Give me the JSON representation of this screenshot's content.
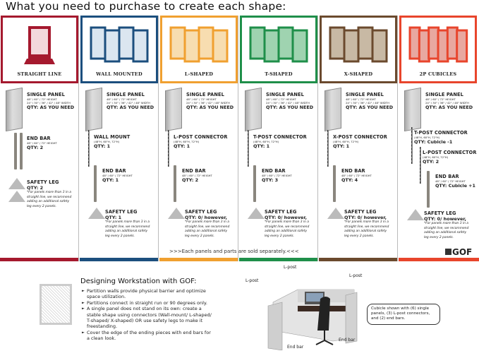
{
  "title": "What you need to purchase to create each shape:",
  "columns": [
    {
      "label": "STRAIGHT LINE",
      "color": "#a5192e",
      "fill": "#f3d8dc",
      "items": [
        {
          "kind": "panel",
          "title": "SINGLE PANEL",
          "subs": [
            "48\" / 60\" / 72\" HEIGHT",
            "24\" / 30\" / 36\" / 42\" / 48\" WIDTH"
          ],
          "qty": "QTY: AS YOU NEED"
        },
        {
          "kind": "endbar2",
          "title": "END BAR",
          "subs": [
            "48\" / 60\" / 72\" HEIGHT"
          ],
          "qty": "QTY: 2"
        },
        {
          "kind": "leg2",
          "title": "SAFETY LEG",
          "subs": [],
          "qty": "QTY: 2",
          "note": "*For panels more than 3 in a straight line, we recommend adding an additional safety leg every 2 panels."
        }
      ]
    },
    {
      "label": "WALL MOUNTED",
      "color": "#1c4f7e",
      "fill": "#dbe6f0",
      "items": [
        {
          "kind": "panel",
          "title": "SINGLE PANEL",
          "subs": [
            "48\" / 60\" / 72\" HEIGHT",
            "24\" / 30\" / 36\" / 42\" / 48\" WIDTH"
          ],
          "qty": "QTY: AS YOU NEED"
        },
        {
          "kind": "post",
          "title": "WALL MOUNT",
          "subs": [
            "(48\"H, 60\"H, 72\"H)"
          ],
          "qty": "QTY: 1"
        },
        {
          "kind": "endbar",
          "title": "END BAR",
          "subs": [
            "48\" / 60\" / 72\" HEIGHT"
          ],
          "qty": "QTY: 1"
        },
        {
          "kind": "leg",
          "title": "SAFETY LEG",
          "subs": [],
          "qty": "QTY: 1",
          "note": "*For panels more than 3 in a straight line, we recommend adding an additional safety leg every 2 panels."
        }
      ]
    },
    {
      "label": "L-SHAPED",
      "color": "#f0a030",
      "fill": "#f7ddb0",
      "items": [
        {
          "kind": "panel",
          "title": "SINGLE PANEL",
          "subs": [
            "48\" / 60\" / 72\" HEIGHT",
            "24\" / 30\" / 36\" / 42\" / 48\" WIDTH"
          ],
          "qty": "QTY: AS YOU NEED"
        },
        {
          "kind": "post",
          "title": "L-POST CONNECTOR",
          "subs": [
            "(48\"H, 60\"H, 72\"H)"
          ],
          "qty": "QTY: 1"
        },
        {
          "kind": "endbar",
          "title": "END BAR",
          "subs": [
            "48\" / 60\" / 72\" HEIGHT"
          ],
          "qty": "QTY: 2"
        },
        {
          "kind": "leg",
          "title": "SAFETY LEG",
          "subs": [],
          "qty": "QTY: 0/ however,",
          "note": "*For panels more than 3 in a straight line, we recommend adding an additional safety leg every 2 panels."
        }
      ]
    },
    {
      "label": "T-SHAPED",
      "color": "#1f8f4a",
      "fill": "#9fd3b0",
      "items": [
        {
          "kind": "panel",
          "title": "SINGLE PANEL",
          "subs": [
            "48\" / 60\" / 72\" HEIGHT",
            "24\" / 30\" / 36\" / 42\" / 48\" WIDTH"
          ],
          "qty": "QTY: AS YOU NEED"
        },
        {
          "kind": "post",
          "title": "T-POST CONNECTOR",
          "subs": [
            "(48\"H, 60\"H, 72\"H)"
          ],
          "qty": "QTY: 1"
        },
        {
          "kind": "endbar",
          "title": "END BAR",
          "subs": [
            "48\" / 60\" / 72\" HEIGHT"
          ],
          "qty": "QTY: 3"
        },
        {
          "kind": "leg",
          "title": "SAFETY LEG",
          "subs": [],
          "qty": "QTY: 0/ however,",
          "note": "*For panels more than 3 in a straight line, we recommend adding an additional safety leg every 2 panels."
        }
      ]
    },
    {
      "label": "X-SHAPED",
      "color": "#6b4a2e",
      "fill": "#c8b9a4",
      "items": [
        {
          "kind": "panel",
          "title": "SINGLE PANEL",
          "subs": [
            "48\" / 60\" / 72\" HEIGHT",
            "24\" / 30\" / 36\" / 42\" / 48\" WIDTH"
          ],
          "qty": "QTY: AS YOU NEED"
        },
        {
          "kind": "post",
          "title": "X-POST CONNECTOR",
          "subs": [
            "(48\"H, 60\"H, 72\"H)"
          ],
          "qty": "QTY: 1"
        },
        {
          "kind": "endbar",
          "title": "END BAR",
          "subs": [
            "48\" / 60\" / 72\" HEIGHT"
          ],
          "qty": "QTY: 4"
        },
        {
          "kind": "leg",
          "title": "SAFETY LEG",
          "subs": [],
          "qty": "QTY: 0/ however,",
          "note": "*For panels more than 3 in a straight line, we recommend adding an additional safety leg every 2 panels."
        }
      ]
    },
    {
      "label": "2P CUBICLES",
      "color": "#e8452c",
      "fill": "#e8a8a0",
      "items": [
        {
          "kind": "panel",
          "title": "SINGLE PANEL",
          "subs": [
            "48\" / 60\" / 72\" HEIGHT",
            "24\" / 30\" / 36\" / 42\" / 48\" WIDTH"
          ],
          "qty": "QTY: AS YOU NEED"
        },
        {
          "kind": "post",
          "title": "T-POST CONNECTOR",
          "subs": [
            "(48\"H, 60\"H, 72\"H)"
          ],
          "qty": "QTY: Cubicle -1"
        },
        {
          "kind": "post",
          "title": "L-POST CONNECTOR",
          "subs": [
            "(48\"H, 60\"H, 72\"H)"
          ],
          "qty": "QTY: 2"
        },
        {
          "kind": "endbar",
          "title": "END BAR",
          "subs": [
            "48\" / 60\" / 72\" HEIGHT"
          ],
          "qty": "QTY: Cubicle +1"
        },
        {
          "kind": "leg",
          "title": "SAFETY LEG",
          "subs": [],
          "qty": "QTY: 0/ however,",
          "note": "*For panels more than 3 in a straight line, we recommend adding an additional safety leg every 2 panels."
        }
      ]
    }
  ],
  "separator_note": ">>>Each panels and parts are sold separately.<<<",
  "logo": "GOF",
  "design": {
    "title": "Designing Workstation with GOF:",
    "bullets": [
      "Partition walls provide physical barrier and optimize space utilization.",
      "Partitions connect in straight run or 90 degrees only.",
      "A single panel does not stand on its own: create a stable shape using connectors (Wall-mount/ L-shaped/ T-shaped/ X-shaped) OR use safety legs to make it freestanding.",
      "Cover the edge of the ending pieces with end bars for a clean look."
    ]
  },
  "cubicle": {
    "labels": {
      "lpost_left": "L-post",
      "lpost_mid": "L-post",
      "lpost_right": "L-post",
      "endbar_left": "End bar",
      "endbar_right": "End bar"
    },
    "callout": "Cubicle shown with (6) single panels, (3) L-post connectors, and (2) end bars."
  }
}
